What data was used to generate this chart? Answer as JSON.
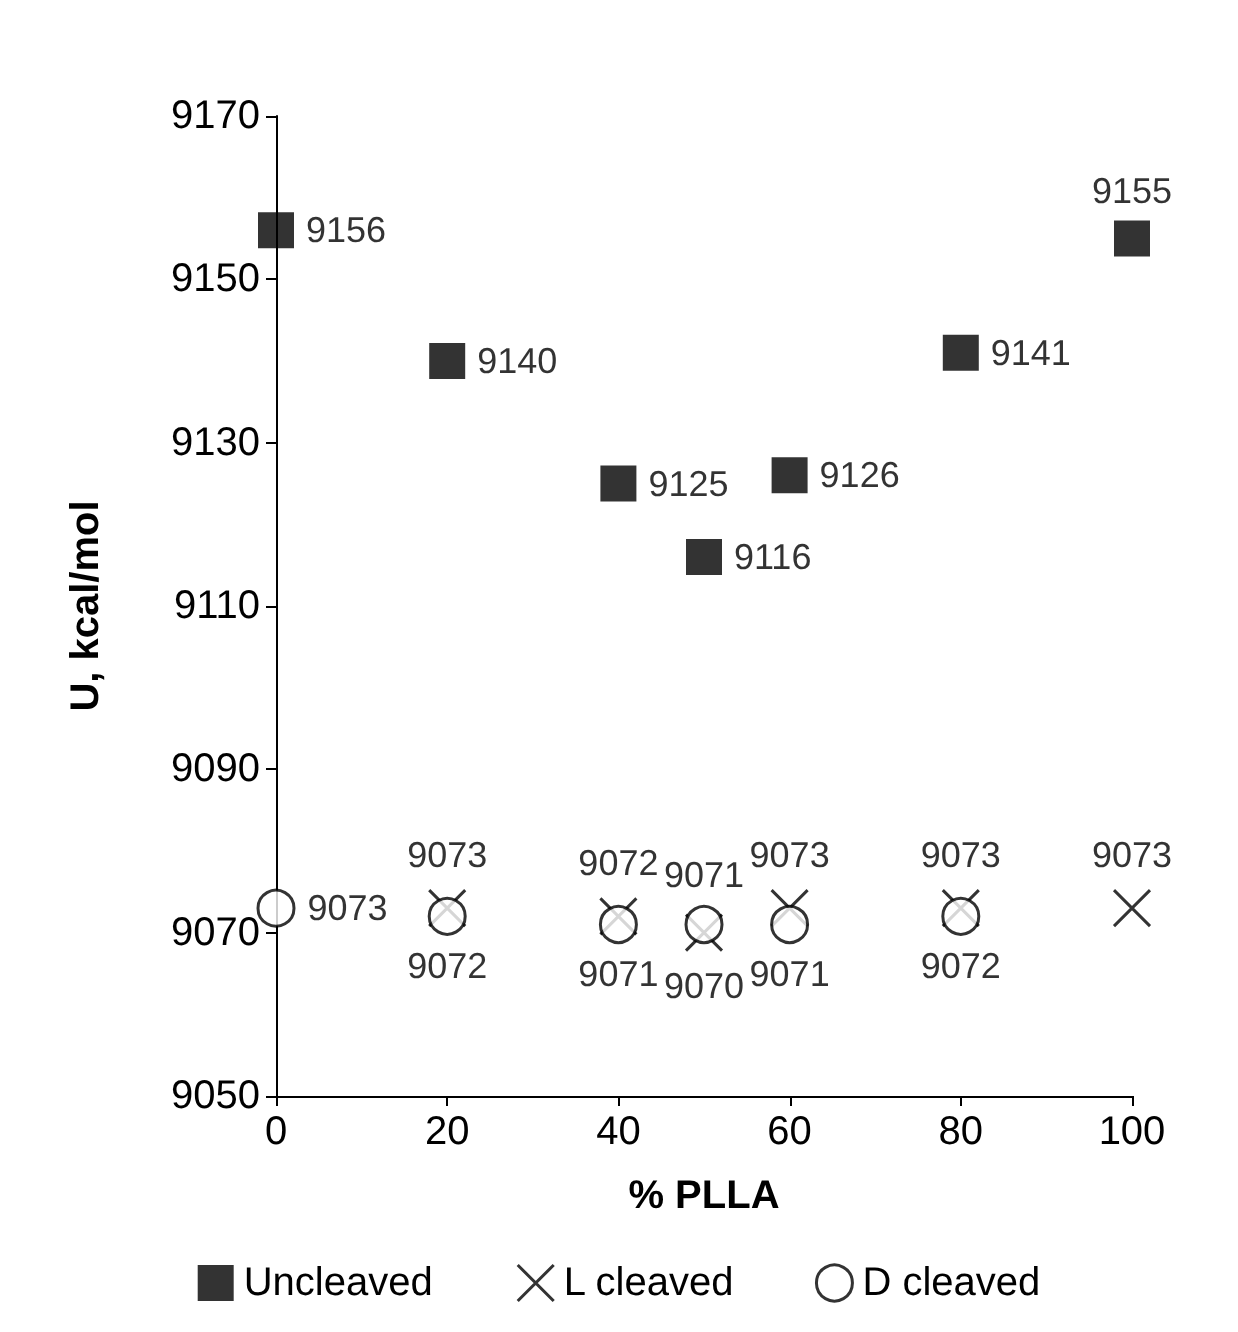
{
  "chart_data": {
    "type": "scatter",
    "xlabel": "% PLLA",
    "ylabel": "U, kcal/mol",
    "xlim": [
      0,
      100
    ],
    "xticks": [
      0,
      20,
      40,
      60,
      80,
      100
    ],
    "ylim": [
      9050,
      9170
    ],
    "yticks": [
      9050,
      9070,
      9090,
      9110,
      9130,
      9150,
      9170
    ],
    "grid": false,
    "legend": "bottom",
    "data_labels": true,
    "series": [
      {
        "name": "Uncleaved",
        "color": "#000000",
        "marker": "square",
        "x": [
          0,
          20,
          40,
          50,
          60,
          80,
          100
        ],
        "values": [
          9156,
          9140,
          9125,
          9116,
          9126,
          9141,
          9155
        ]
      },
      {
        "name": "L cleaved",
        "color": "#000000",
        "marker": "cross",
        "x": [
          20,
          40,
          50,
          60,
          80,
          100
        ],
        "values": [
          9073,
          9072,
          9070,
          9073,
          9073,
          9073
        ]
      },
      {
        "name": "D cleaved",
        "color": "#000000",
        "marker": "circle",
        "x": [
          0,
          20,
          40,
          50,
          60,
          80
        ],
        "values": [
          9073,
          9072,
          9071,
          9071,
          9071,
          9072
        ]
      }
    ]
  }
}
